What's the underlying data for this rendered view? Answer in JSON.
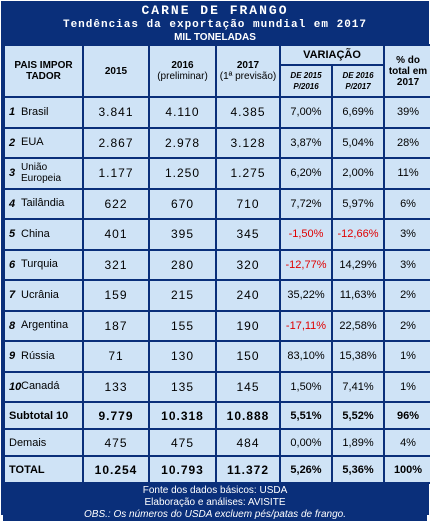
{
  "header": {
    "title": "CARNE DE FRANGO",
    "subtitle": "Tendências da exportação mundial em 2017",
    "unit": "MIL TONELADAS"
  },
  "columns": {
    "country": "PAIS IMPOR TADOR",
    "y2015": "2015",
    "y2016": "2016",
    "y2016_note": "(preliminar)",
    "y2017": "2017",
    "y2017_note": "(1ª previsão)",
    "variation": "VARIAÇÃO",
    "var_a": "DE 2015 P/2016",
    "var_b": "DE 2016 P/2017",
    "share": "% do total em 2017"
  },
  "rows": [
    {
      "rank": "1",
      "country": "Brasil",
      "v2015": "3.841",
      "v2016": "4.110",
      "v2017": "4.385",
      "var_a": "7,00%",
      "var_b": "6,69%",
      "share": "39%"
    },
    {
      "rank": "2",
      "country": "EUA",
      "v2015": "2.867",
      "v2016": "2.978",
      "v2017": "3.128",
      "var_a": "3,87%",
      "var_b": "5,04%",
      "share": "28%"
    },
    {
      "rank": "3",
      "country": "União Europeia",
      "v2015": "1.177",
      "v2016": "1.250",
      "v2017": "1.275",
      "var_a": "6,20%",
      "var_b": "2,00%",
      "share": "11%"
    },
    {
      "rank": "4",
      "country": "Tailândia",
      "v2015": "622",
      "v2016": "670",
      "v2017": "710",
      "var_a": "7,72%",
      "var_b": "5,97%",
      "share": "6%"
    },
    {
      "rank": "5",
      "country": "China",
      "v2015": "401",
      "v2016": "395",
      "v2017": "345",
      "var_a": "-1,50%",
      "var_b": "-12,66%",
      "share": "3%"
    },
    {
      "rank": "6",
      "country": "Turquia",
      "v2015": "321",
      "v2016": "280",
      "v2017": "320",
      "var_a": "-12,77%",
      "var_b": "14,29%",
      "share": "3%"
    },
    {
      "rank": "7",
      "country": "Ucrânia",
      "v2015": "159",
      "v2016": "215",
      "v2017": "240",
      "var_a": "35,22%",
      "var_b": "11,63%",
      "share": "2%"
    },
    {
      "rank": "8",
      "country": "Argentina",
      "v2015": "187",
      "v2016": "155",
      "v2017": "190",
      "var_a": "-17,11%",
      "var_b": "22,58%",
      "share": "2%"
    },
    {
      "rank": "9",
      "country": "Rússia",
      "v2015": "71",
      "v2016": "130",
      "v2017": "150",
      "var_a": "83,10%",
      "var_b": "15,38%",
      "share": "1%"
    },
    {
      "rank": "10",
      "country": "Canadá",
      "v2015": "133",
      "v2016": "135",
      "v2017": "145",
      "var_a": "1,50%",
      "var_b": "7,41%",
      "share": "1%"
    }
  ],
  "subtotal": {
    "label": "Subtotal 10",
    "v2015": "9.779",
    "v2016": "10.318",
    "v2017": "10.888",
    "var_a": "5,51%",
    "var_b": "5,52%",
    "share": "96%"
  },
  "others": {
    "label": "Demais",
    "v2015": "475",
    "v2016": "475",
    "v2017": "484",
    "var_a": "0,00%",
    "var_b": "1,89%",
    "share": "4%"
  },
  "total": {
    "label": "TOTAL",
    "v2015": "10.254",
    "v2016": "10.793",
    "v2017": "11.372",
    "var_a": "5,26%",
    "var_b": "5,36%",
    "share": "100%"
  },
  "footer": {
    "source": "Fonte dos dados básicos: USDA",
    "elaboration": "Elaboração e análises: AVISITE",
    "obs": "OBS.: Os números do USDA excluem pés/patas de frango."
  },
  "colors": {
    "frame": "#0a2f7a",
    "cell": "#cfe3f6",
    "negative": "#e00000"
  }
}
